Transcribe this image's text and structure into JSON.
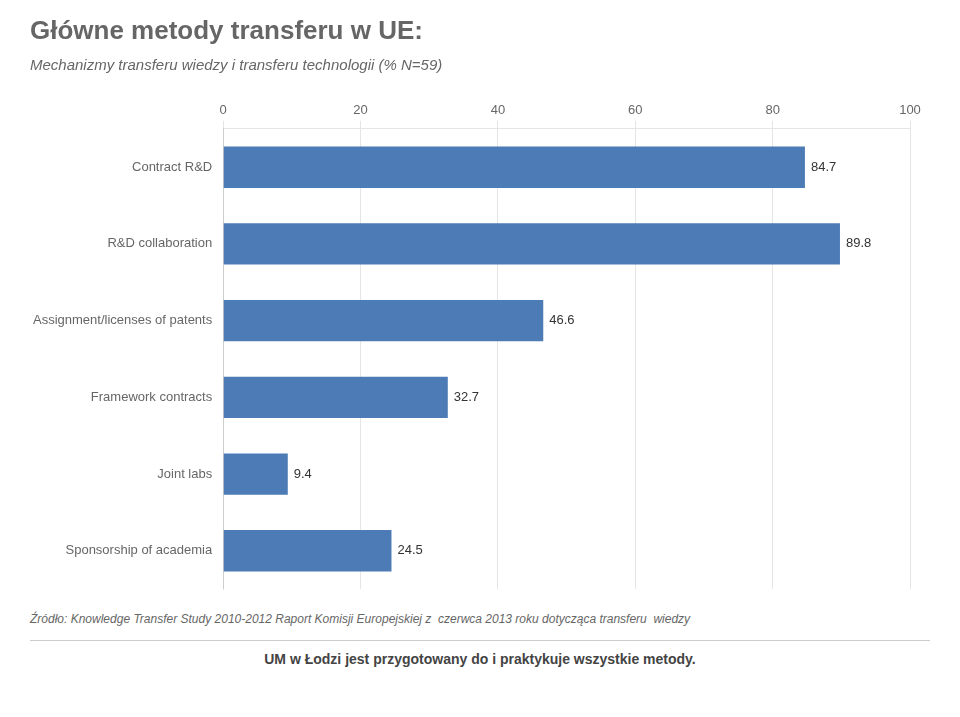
{
  "chart_data": {
    "type": "bar",
    "orientation": "horizontal",
    "title": "Główne metody transferu w UE:",
    "subtitle": "Mechanizmy transferu wiedzy i transferu technologii (% N=59)",
    "categories": [
      "Contract R&D",
      "R&D collaboration",
      "Assignment/licenses of patents",
      "Framework contracts",
      "Joint labs",
      "Sponsorship of academia"
    ],
    "values": [
      84.7,
      89.8,
      46.6,
      32.7,
      9.4,
      24.5
    ],
    "color": "#4C7BB5",
    "xlim": [
      0,
      100
    ],
    "xticks": [
      0,
      20,
      40,
      60,
      80,
      100
    ],
    "grid": true,
    "data_labels": true,
    "annotations": [
      "Źródło: Knowledge Transfer Study 2010-2012 Raport Komisji Europejskiej z  czerwca 2013 roku dotycząca transferu  wiedzy",
      "UM w Łodzi jest przygotowany do i praktykuje wszystkie metody."
    ]
  }
}
